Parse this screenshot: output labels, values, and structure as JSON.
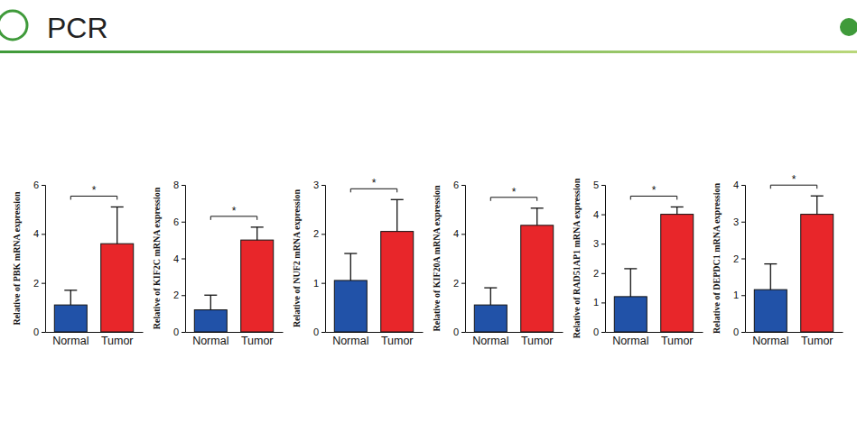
{
  "header": {
    "title": "PCR"
  },
  "chart_data": [
    {
      "type": "bar",
      "y_label": "Relative of PBK mRNA expression",
      "categories": [
        "Normal",
        "Tumor"
      ],
      "values": [
        1.1,
        3.6
      ],
      "errors": [
        0.6,
        1.5
      ],
      "colors": [
        "#2152a8",
        "#e8262a"
      ],
      "ylim": [
        0,
        6
      ],
      "yticks": [
        0,
        2,
        4,
        6
      ],
      "annotation": "*"
    },
    {
      "type": "bar",
      "y_label": "Relative of KIF2C mRNA expression",
      "categories": [
        "Normal",
        "Tumor"
      ],
      "values": [
        1.2,
        5.0
      ],
      "errors": [
        0.8,
        0.7
      ],
      "colors": [
        "#2152a8",
        "#e8262a"
      ],
      "ylim": [
        0,
        8
      ],
      "yticks": [
        0,
        2,
        4,
        6,
        8
      ],
      "annotation": "*"
    },
    {
      "type": "bar",
      "y_label": "Relative of NUF2 mRNA expression",
      "categories": [
        "Normal",
        "Tumor"
      ],
      "values": [
        1.05,
        2.05
      ],
      "errors": [
        0.55,
        0.65
      ],
      "colors": [
        "#2152a8",
        "#e8262a"
      ],
      "ylim": [
        0,
        3
      ],
      "yticks": [
        0,
        1,
        2,
        3
      ],
      "annotation": "*"
    },
    {
      "type": "bar",
      "y_label": "Relative of KIF20A mRNA expression",
      "categories": [
        "Normal",
        "Tumor"
      ],
      "values": [
        1.1,
        4.35
      ],
      "errors": [
        0.7,
        0.7
      ],
      "colors": [
        "#2152a8",
        "#e8262a"
      ],
      "ylim": [
        0,
        6
      ],
      "yticks": [
        0,
        2,
        4,
        6
      ],
      "annotation": "*"
    },
    {
      "type": "bar",
      "y_label": "Relative of RAD51AP1 mRNA expression",
      "categories": [
        "Normal",
        "Tumor"
      ],
      "values": [
        1.2,
        4.0
      ],
      "errors": [
        0.95,
        0.25
      ],
      "colors": [
        "#2152a8",
        "#e8262a"
      ],
      "ylim": [
        0,
        5
      ],
      "yticks": [
        0,
        1,
        2,
        3,
        4,
        5
      ],
      "annotation": "*"
    },
    {
      "type": "bar",
      "y_label": "Relative of DEPDC1 mRNA expression",
      "categories": [
        "Normal",
        "Tumor"
      ],
      "values": [
        1.15,
        3.2
      ],
      "errors": [
        0.7,
        0.5
      ],
      "colors": [
        "#2152a8",
        "#e8262a"
      ],
      "ylim": [
        0,
        4
      ],
      "yticks": [
        0,
        1,
        2,
        3,
        4
      ],
      "annotation": "*"
    }
  ]
}
